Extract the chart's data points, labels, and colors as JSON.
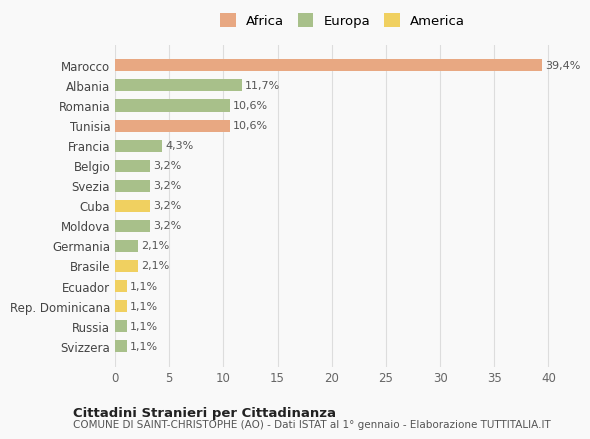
{
  "categories": [
    "Marocco",
    "Albania",
    "Romania",
    "Tunisia",
    "Francia",
    "Belgio",
    "Svezia",
    "Cuba",
    "Moldova",
    "Germania",
    "Brasile",
    "Ecuador",
    "Rep. Dominicana",
    "Russia",
    "Svizzera"
  ],
  "values": [
    39.4,
    11.7,
    10.6,
    10.6,
    4.3,
    3.2,
    3.2,
    3.2,
    3.2,
    2.1,
    2.1,
    1.1,
    1.1,
    1.1,
    1.1
  ],
  "labels": [
    "39,4%",
    "11,7%",
    "10,6%",
    "10,6%",
    "4,3%",
    "3,2%",
    "3,2%",
    "3,2%",
    "3,2%",
    "2,1%",
    "2,1%",
    "1,1%",
    "1,1%",
    "1,1%",
    "1,1%"
  ],
  "continents": [
    "Africa",
    "Europa",
    "Europa",
    "Africa",
    "Europa",
    "Europa",
    "Europa",
    "America",
    "Europa",
    "Europa",
    "America",
    "America",
    "America",
    "Europa",
    "Europa"
  ],
  "colors": {
    "Africa": "#E8A882",
    "Europa": "#A8C08A",
    "America": "#F0D060"
  },
  "legend_labels": [
    "Africa",
    "Europa",
    "America"
  ],
  "legend_colors": [
    "#E8A882",
    "#A8C08A",
    "#F0D060"
  ],
  "xlim": [
    0,
    42
  ],
  "xticks": [
    0,
    5,
    10,
    15,
    20,
    25,
    30,
    35,
    40
  ],
  "title1": "Cittadini Stranieri per Cittadinanza",
  "title2": "COMUNE DI SAINT-CHRISTOPHE (AO) - Dati ISTAT al 1° gennaio - Elaborazione TUTTITALIA.IT",
  "background_color": "#f9f9f9",
  "grid_color": "#dddddd"
}
